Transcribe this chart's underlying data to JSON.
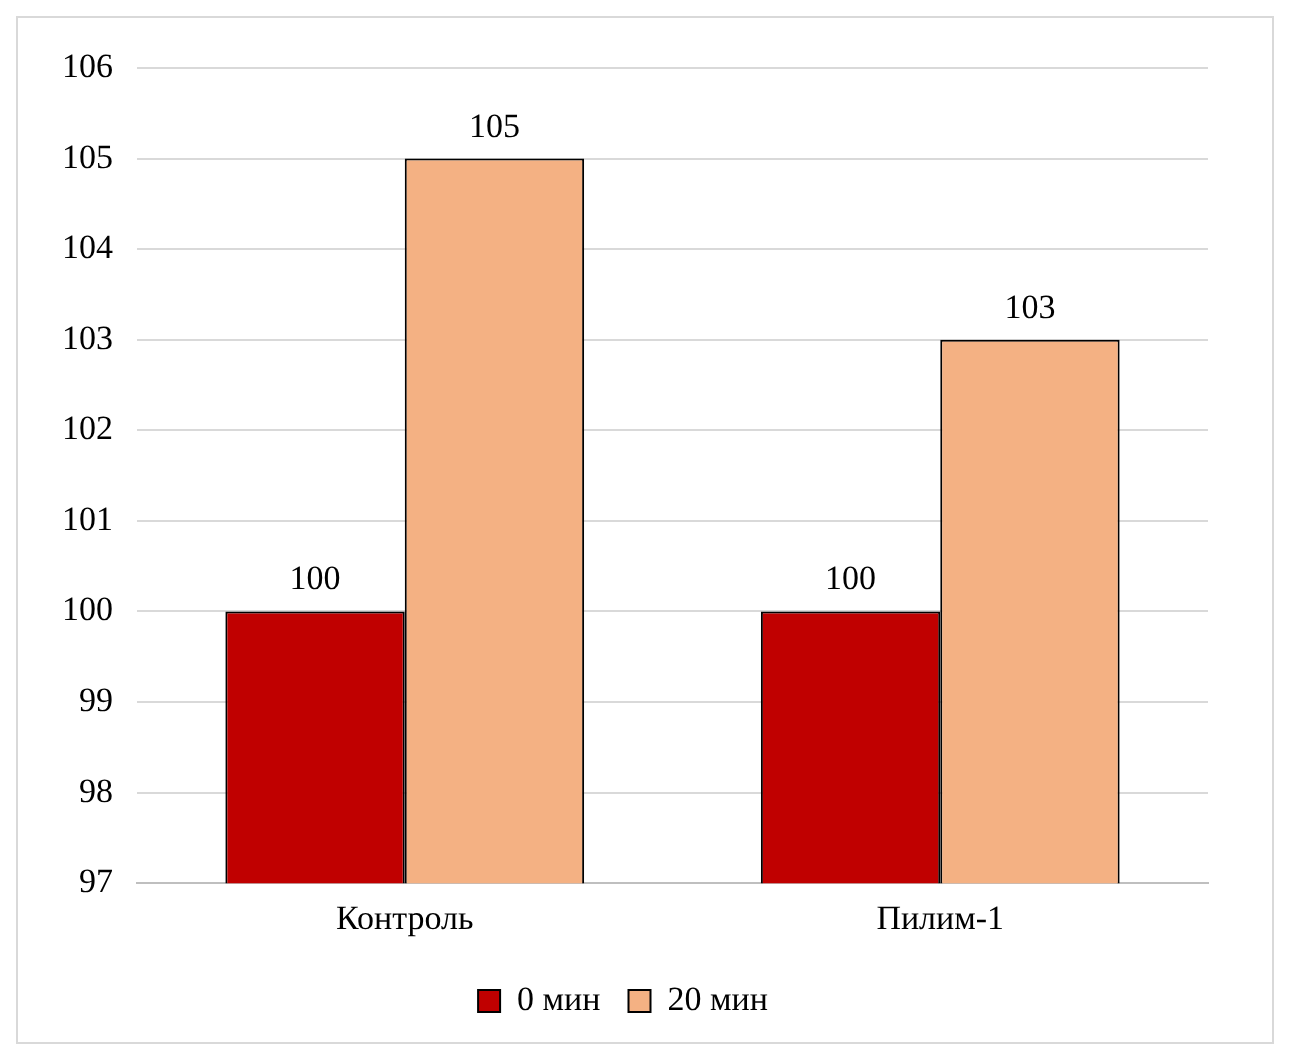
{
  "chart_data": {
    "type": "bar",
    "categories": [
      "Контроль",
      "Пилим-1"
    ],
    "series": [
      {
        "name": "0 мин",
        "color": "#c00000",
        "values": [
          100,
          100
        ]
      },
      {
        "name": "20 мин",
        "color": "#f4b183",
        "values": [
          105,
          103
        ]
      }
    ],
    "ylim": [
      97,
      106
    ],
    "yticks": [
      97,
      98,
      99,
      100,
      101,
      102,
      103,
      104,
      105,
      106
    ],
    "grid": "y",
    "legend": "bottom",
    "data_labels": true
  }
}
